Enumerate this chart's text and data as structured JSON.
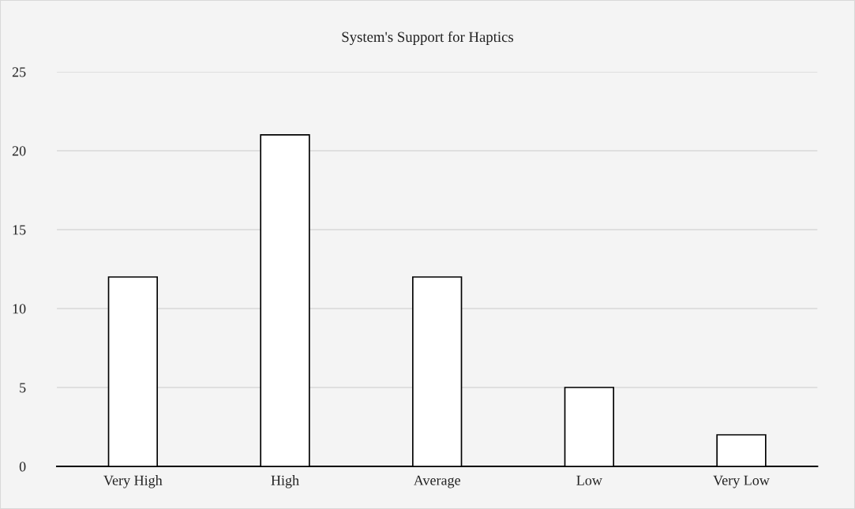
{
  "chart_data": {
    "type": "bar",
    "title": "System's Support for Haptics",
    "categories": [
      "Very High",
      "High",
      "Average",
      "Low",
      "Very Low"
    ],
    "values": [
      12,
      21,
      12,
      5,
      2
    ],
    "color": "#ffffff",
    "ylim": [
      0,
      25
    ],
    "yticks": [
      0,
      5,
      10,
      15,
      20,
      25
    ],
    "grid": "y"
  }
}
